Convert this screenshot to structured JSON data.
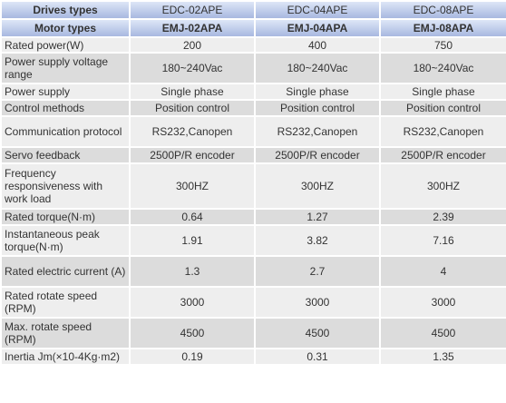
{
  "header": {
    "label": "Drives types",
    "models": [
      "EDC-02APE",
      "EDC-04APE",
      "EDC-08APE"
    ]
  },
  "subheader": {
    "label": "Motor types",
    "models": [
      "EMJ-02APA",
      "EMJ-04APA",
      "EMJ-08APA"
    ]
  },
  "rows": [
    {
      "label": "Rated power(W)",
      "values": [
        "200",
        "400",
        "750"
      ]
    },
    {
      "label": "Power supply voltage range",
      "values": [
        "180~240Vac",
        "180~240Vac",
        "180~240Vac"
      ]
    },
    {
      "label": "Power supply",
      "values": [
        "Single phase",
        "Single phase",
        "Single phase"
      ]
    },
    {
      "label": "Control methods",
      "values": [
        "Position control",
        "Position control",
        "Position control"
      ]
    },
    {
      "label": "Communication protocol",
      "values": [
        "RS232,Canopen",
        "RS232,Canopen",
        "RS232,Canopen"
      ]
    },
    {
      "label": "Servo feedback",
      "values": [
        "2500P/R encoder",
        "2500P/R encoder",
        "2500P/R encoder"
      ]
    },
    {
      "label": "Frequency responsiveness with work load",
      "values": [
        "300HZ",
        "300HZ",
        "300HZ"
      ]
    },
    {
      "label": "Rated torque(N·m)",
      "values": [
        "0.64",
        "1.27",
        "2.39"
      ]
    },
    {
      "label": "Instantaneous peak torque(N·m)",
      "values": [
        "1.91",
        "3.82",
        "7.16"
      ]
    },
    {
      "label": "Rated electric current (A)",
      "values": [
        "1.3",
        "2.7",
        "4"
      ]
    },
    {
      "label": "Rated rotate speed (RPM)",
      "values": [
        "3000",
        "3000",
        "3000"
      ]
    },
    {
      "label": "Max. rotate speed (RPM)",
      "values": [
        "4500",
        "4500",
        "4500"
      ]
    },
    {
      "label": "Inertia Jm(×10-4Kg·m2)",
      "values": [
        "0.19",
        "0.31",
        "1.35"
      ]
    }
  ]
}
